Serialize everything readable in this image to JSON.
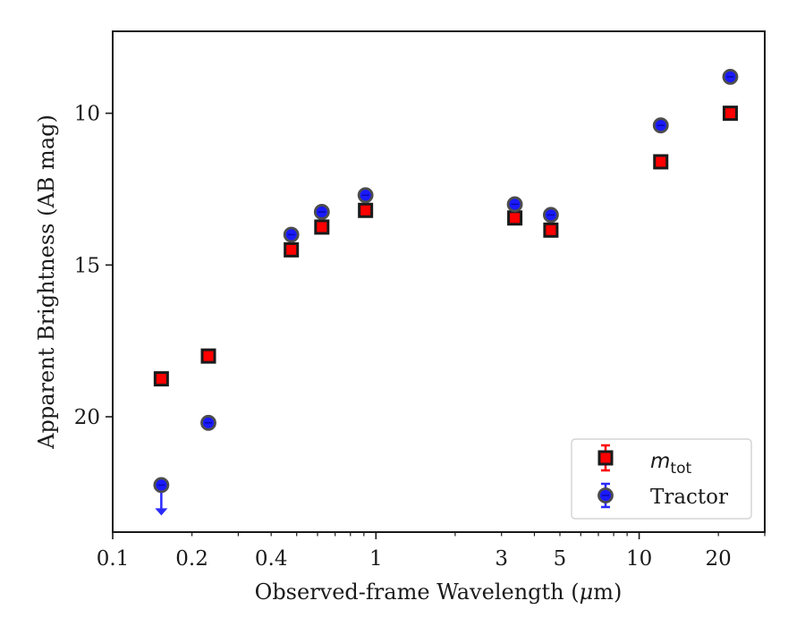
{
  "chart_data": {
    "type": "scatter",
    "xlabel_prefix": "Observed-frame Wavelength (",
    "xlabel_mu": "μ",
    "xlabel_suffix": "m)",
    "ylabel": "Apparent Brightness (AB mag)",
    "xscale": "log",
    "xlim": [
      0.1,
      30
    ],
    "ylim": [
      23.8,
      7.3
    ],
    "y_inverted": true,
    "x_ticks": [
      {
        "value": 0.1,
        "label": "0.1"
      },
      {
        "value": 0.2,
        "label": "0.2"
      },
      {
        "value": 0.4,
        "label": "0.4"
      },
      {
        "value": 1,
        "label": "1"
      },
      {
        "value": 3,
        "label": "3"
      },
      {
        "value": 5,
        "label": "5"
      },
      {
        "value": 10,
        "label": "10"
      },
      {
        "value": 20,
        "label": "20"
      }
    ],
    "y_ticks": [
      {
        "value": 10,
        "label": "10"
      },
      {
        "value": 15,
        "label": "15"
      },
      {
        "value": 20,
        "label": "20"
      }
    ],
    "legend_position": "lower-right",
    "series": [
      {
        "name_main": "m",
        "name_sub": "tot",
        "marker": "square",
        "color": "#ff0000",
        "edge_color": "#1a1a1a",
        "points": [
          {
            "x": 0.153,
            "y": 18.75
          },
          {
            "x": 0.231,
            "y": 18.0
          },
          {
            "x": 0.477,
            "y": 14.5
          },
          {
            "x": 0.623,
            "y": 13.75
          },
          {
            "x": 0.913,
            "y": 13.2
          },
          {
            "x": 3.37,
            "y": 13.45
          },
          {
            "x": 4.62,
            "y": 13.85
          },
          {
            "x": 12.08,
            "y": 11.6
          },
          {
            "x": 22.19,
            "y": 10.0
          }
        ]
      },
      {
        "name": "Tractor",
        "marker": "circle",
        "color": "#1a1aff",
        "edge_color": "#4d4d4d",
        "points": [
          {
            "x": 0.153,
            "y": 22.25,
            "upper_limit": true
          },
          {
            "x": 0.231,
            "y": 20.2
          },
          {
            "x": 0.477,
            "y": 14.0
          },
          {
            "x": 0.623,
            "y": 13.25
          },
          {
            "x": 0.913,
            "y": 12.7
          },
          {
            "x": 3.37,
            "y": 13.0
          },
          {
            "x": 4.62,
            "y": 13.35
          },
          {
            "x": 12.08,
            "y": 10.4
          },
          {
            "x": 22.19,
            "y": 8.8
          }
        ]
      }
    ]
  }
}
